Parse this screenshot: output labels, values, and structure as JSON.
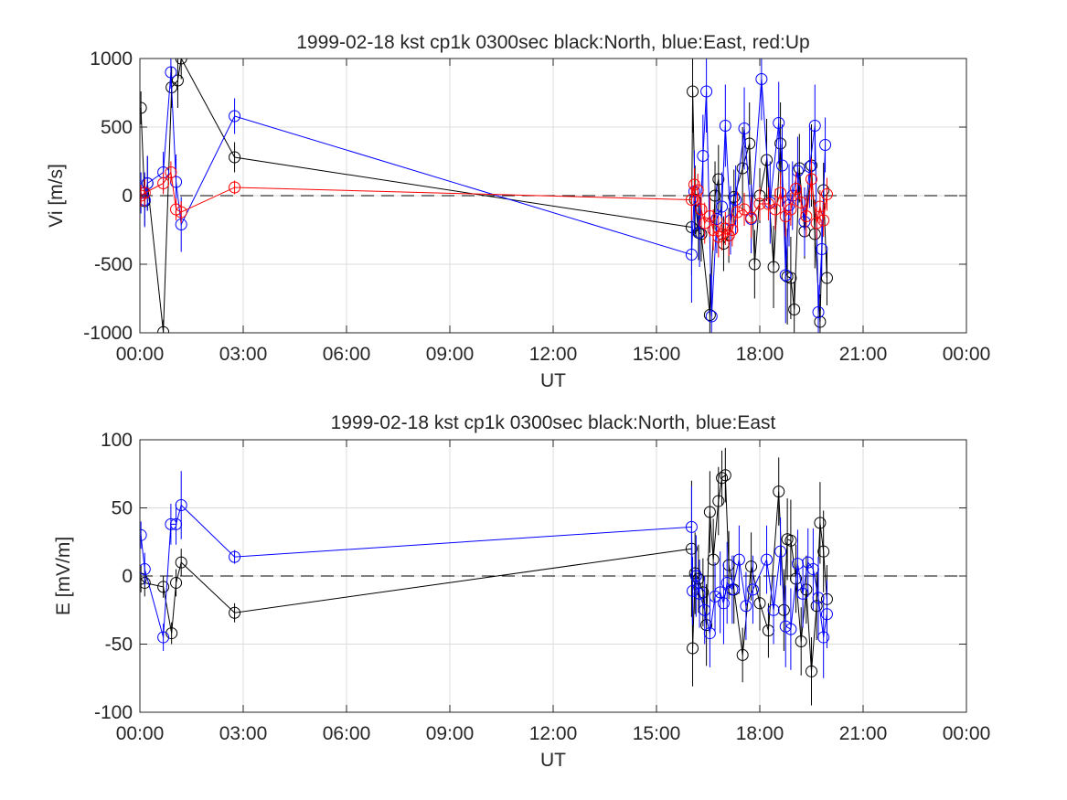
{
  "chart_data": [
    {
      "type": "scatter",
      "title": "1999-02-18 kst cp1k 0300sec black:North, blue:East, red:Up",
      "xlabel": "UT",
      "ylabel": "Vi [m/s]",
      "xlim": [
        0,
        24
      ],
      "ylim": [
        -1000,
        1000
      ],
      "x_unit": "hours UT",
      "xtick_labels": [
        "00:00",
        "03:00",
        "06:00",
        "09:00",
        "12:00",
        "15:00",
        "18:00",
        "21:00",
        "00:00"
      ],
      "ytick_labels": [
        "-1000",
        "-500",
        "0",
        "500",
        "1000"
      ],
      "grid": true,
      "zero_line": "dashed",
      "series": [
        {
          "name": "North",
          "color": "#000000",
          "x": [
            0.03,
            0.14,
            0.22,
            0.68,
            0.92,
            1.1,
            1.2,
            2.75,
            16.02,
            16.05,
            16.12,
            16.22,
            16.3,
            16.55,
            16.7,
            16.8,
            16.95,
            17.1,
            17.25,
            17.5,
            17.7,
            17.85,
            18.0,
            18.2,
            18.4,
            18.6,
            18.8,
            18.9,
            19.0,
            19.15,
            19.3,
            19.5,
            19.6,
            19.75,
            19.85,
            19.95
          ],
          "y": [
            640,
            -40,
            90,
            -995,
            790,
            840,
            1000,
            280,
            -230,
            760,
            -30,
            -270,
            -280,
            -870,
            0,
            120,
            -350,
            -290,
            -10,
            200,
            380,
            -500,
            0,
            260,
            -520,
            380,
            -590,
            -600,
            -830,
            200,
            -260,
            220,
            -280,
            -920,
            40,
            -600
          ],
          "err": [
            120,
            180,
            200,
            90,
            150,
            200,
            150,
            110,
            350,
            300,
            250,
            200,
            200,
            300,
            250,
            250,
            200,
            200,
            200,
            300,
            300,
            250,
            200,
            300,
            300,
            300,
            350,
            300,
            200,
            250,
            200,
            300,
            250,
            200,
            200,
            200
          ]
        },
        {
          "name": "East",
          "color": "#0000ff",
          "x": [
            0.03,
            0.14,
            0.22,
            0.68,
            0.9,
            1.05,
            1.2,
            2.75,
            16.02,
            16.1,
            16.25,
            16.35,
            16.45,
            16.6,
            16.75,
            16.9,
            17.0,
            17.15,
            17.3,
            17.55,
            17.75,
            18.05,
            18.3,
            18.55,
            18.65,
            18.75,
            18.85,
            18.95,
            19.1,
            19.3,
            19.45,
            19.6,
            19.7,
            19.8,
            19.9
          ],
          "y": [
            20,
            -30,
            90,
            170,
            900,
            100,
            -210,
            580,
            -430,
            30,
            -270,
            290,
            760,
            -880,
            -170,
            -80,
            510,
            -180,
            -30,
            490,
            -170,
            850,
            -50,
            530,
            220,
            -580,
            -70,
            0,
            180,
            -190,
            210,
            510,
            -850,
            -390,
            370
          ],
          "err": [
            150,
            200,
            200,
            150,
            120,
            200,
            200,
            130,
            350,
            300,
            250,
            300,
            300,
            300,
            250,
            250,
            300,
            250,
            250,
            300,
            250,
            300,
            300,
            300,
            300,
            350,
            300,
            250,
            250,
            250,
            300,
            300,
            200,
            200,
            200
          ]
        },
        {
          "name": "Up",
          "color": "#ff0000",
          "x": [
            0.03,
            0.14,
            0.68,
            0.9,
            1.05,
            1.2,
            2.75,
            16.02,
            16.1,
            16.2,
            16.3,
            16.4,
            16.55,
            16.65,
            16.8,
            16.9,
            17.0,
            17.1,
            17.2,
            17.35,
            17.55,
            17.75,
            18.0,
            18.25,
            18.45,
            18.6,
            18.75,
            18.9,
            19.05,
            19.2,
            19.35,
            19.5,
            19.65,
            19.75,
            19.85,
            19.95
          ],
          "y": [
            0,
            20,
            90,
            170,
            -100,
            -120,
            60,
            -30,
            80,
            40,
            -100,
            -200,
            -150,
            -250,
            -300,
            -280,
            -240,
            -290,
            -250,
            -120,
            -100,
            -160,
            -60,
            -60,
            -100,
            20,
            -150,
            -100,
            50,
            -50,
            -150,
            120,
            -200,
            -80,
            -180,
            10
          ],
          "err": [
            80,
            100,
            80,
            80,
            80,
            80,
            50,
            150,
            120,
            120,
            120,
            150,
            150,
            150,
            150,
            120,
            120,
            150,
            120,
            150,
            120,
            150,
            120,
            120,
            150,
            150,
            150,
            120,
            120,
            120,
            150,
            150,
            120,
            120,
            120,
            120
          ]
        }
      ]
    },
    {
      "type": "scatter",
      "title": "1999-02-18 kst cp1k 0300sec black:North, blue:East",
      "xlabel": "UT",
      "ylabel": "E [mV/m]",
      "xlim": [
        0,
        24
      ],
      "ylim": [
        -100,
        100
      ],
      "x_unit": "hours UT",
      "xtick_labels": [
        "00:00",
        "03:00",
        "06:00",
        "09:00",
        "12:00",
        "15:00",
        "18:00",
        "21:00",
        "00:00"
      ],
      "ytick_labels": [
        "-100",
        "-50",
        "0",
        "50",
        "100"
      ],
      "grid": true,
      "zero_line": "dashed",
      "series": [
        {
          "name": "North",
          "color": "#000000",
          "x": [
            0.03,
            0.14,
            0.68,
            0.92,
            1.05,
            1.2,
            2.75,
            16.02,
            16.05,
            16.12,
            16.22,
            16.35,
            16.45,
            16.55,
            16.65,
            16.8,
            16.9,
            17.0,
            17.1,
            17.25,
            17.5,
            17.75,
            18.0,
            18.25,
            18.55,
            18.7,
            18.8,
            18.9,
            19.05,
            19.2,
            19.35,
            19.5,
            19.65,
            19.75,
            19.85,
            19.95
          ],
          "y": [
            -2,
            -5,
            -8,
            -42,
            -5,
            10,
            -27,
            20,
            -53,
            2,
            -2,
            -12,
            -36,
            47,
            12,
            55,
            72,
            74,
            8,
            -10,
            -58,
            7,
            -20,
            -40,
            62,
            -25,
            27,
            26,
            -2,
            -48,
            -10,
            -70,
            -22,
            39,
            18,
            -17
          ],
          "err": [
            10,
            10,
            8,
            8,
            10,
            10,
            7,
            50,
            28,
            30,
            25,
            25,
            30,
            30,
            30,
            25,
            20,
            20,
            25,
            25,
            20,
            25,
            20,
            20,
            25,
            30,
            30,
            30,
            25,
            25,
            25,
            25,
            25,
            30,
            30,
            25
          ]
        },
        {
          "name": "East",
          "color": "#0000ff",
          "x": [
            0.03,
            0.14,
            0.68,
            0.9,
            1.05,
            1.2,
            2.75,
            16.02,
            16.05,
            16.15,
            16.25,
            16.4,
            16.55,
            16.7,
            16.85,
            16.95,
            17.05,
            17.2,
            17.4,
            17.6,
            17.8,
            18.2,
            18.4,
            18.6,
            18.75,
            18.9,
            19.1,
            19.25,
            19.4,
            19.55,
            19.7,
            19.85,
            19.95
          ],
          "y": [
            30,
            5,
            -45,
            38,
            38,
            52,
            14,
            36,
            -11,
            0,
            -13,
            -25,
            -42,
            -15,
            -12,
            -20,
            -5,
            -10,
            12,
            -22,
            -10,
            12,
            -25,
            18,
            -37,
            -39,
            9,
            -13,
            10,
            5,
            -16,
            -45,
            -28
          ],
          "err": [
            10,
            12,
            10,
            15,
            15,
            25,
            5,
            30,
            25,
            30,
            25,
            25,
            25,
            25,
            30,
            30,
            30,
            25,
            25,
            25,
            25,
            25,
            25,
            25,
            30,
            30,
            25,
            25,
            25,
            30,
            30,
            30,
            25
          ]
        }
      ]
    }
  ]
}
